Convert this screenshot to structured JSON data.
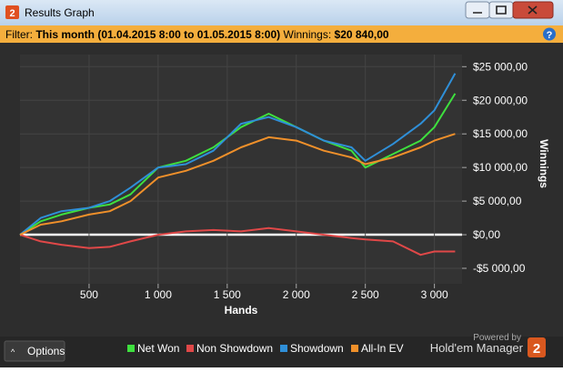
{
  "window": {
    "title": "Results Graph",
    "icon": "2"
  },
  "filter": {
    "label": "Filter:",
    "range": "This month (01.04.2015 8:00 to 01.05.2015 8:00)",
    "winnings_label": "Winnings:",
    "winnings": "$20 840,00"
  },
  "footer": {
    "options": "Options",
    "powered_by": "Powered by",
    "brand": "Hold'em Manager",
    "brand_icon": "2"
  },
  "chart_data": {
    "type": "line",
    "xlabel": "Hands",
    "ylabel": "Winnings",
    "x": [
      0,
      150,
      300,
      500,
      650,
      800,
      1000,
      1200,
      1400,
      1600,
      1800,
      2000,
      2200,
      2400,
      2500,
      2700,
      2900,
      3000,
      3150
    ],
    "series": [
      {
        "name": "Net Won",
        "color": "#3ee03e",
        "values": [
          0,
          2000,
          3000,
          4000,
          4500,
          6000,
          10000,
          11000,
          13000,
          16000,
          18000,
          16000,
          14000,
          12500,
          10000,
          12000,
          14000,
          16000,
          21000
        ]
      },
      {
        "name": "Non Showdown",
        "color": "#e04848",
        "values": [
          0,
          -1000,
          -1500,
          -2000,
          -1800,
          -1000,
          0,
          500,
          700,
          500,
          1000,
          500,
          0,
          -500,
          -700,
          -1000,
          -3000,
          -2500,
          -2500
        ]
      },
      {
        "name": "Showdown",
        "color": "#2f8fd8",
        "values": [
          0,
          2500,
          3500,
          4000,
          5000,
          7000,
          10000,
          10500,
          12500,
          16500,
          17500,
          16000,
          14000,
          13000,
          11000,
          13500,
          16500,
          18500,
          24000
        ]
      },
      {
        "name": "All-In EV",
        "color": "#f0902a",
        "values": [
          0,
          1500,
          2000,
          3000,
          3500,
          5000,
          8500,
          9500,
          11000,
          13000,
          14500,
          14000,
          12500,
          11500,
          10500,
          11500,
          13000,
          14000,
          15000
        ]
      }
    ],
    "xlim": [
      0,
      3200
    ],
    "ylim": [
      -7300,
      26800
    ],
    "xticks": [
      {
        "value": 500,
        "label": "500"
      },
      {
        "value": 1000,
        "label": "1 000"
      },
      {
        "value": 1500,
        "label": "1 500"
      },
      {
        "value": 2000,
        "label": "2 000"
      },
      {
        "value": 2500,
        "label": "2 500"
      },
      {
        "value": 3000,
        "label": "3 000"
      }
    ],
    "yticks": [
      {
        "value": -5000,
        "label": "-$5 000,00"
      },
      {
        "value": 0,
        "label": "$0,00"
      },
      {
        "value": 5000,
        "label": "$5 000,00"
      },
      {
        "value": 10000,
        "label": "$10 000,00"
      },
      {
        "value": 15000,
        "label": "$15 000,00"
      },
      {
        "value": 20000,
        "label": "$20 000,00"
      },
      {
        "value": 25000,
        "label": "$25 000,00"
      }
    ],
    "grid": true
  }
}
